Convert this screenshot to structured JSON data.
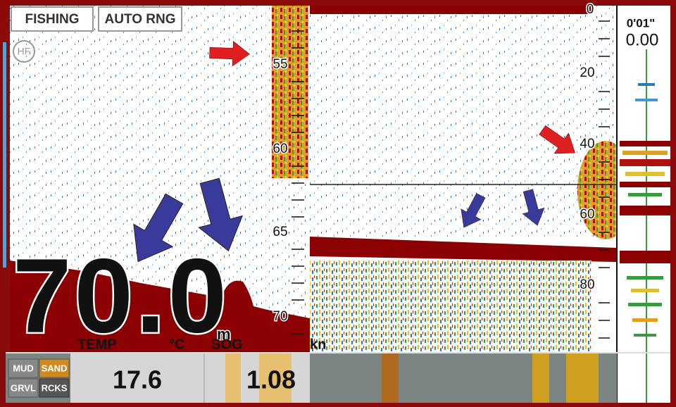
{
  "header": {
    "mode": "FISHING",
    "range": "AUTO RNG",
    "frequency": "HF"
  },
  "left_scale": [
    "55",
    "60",
    "65",
    "70"
  ],
  "right_scale": [
    "0",
    "20",
    "40",
    "60",
    "80"
  ],
  "flasher": {
    "time": "0'01\"",
    "value": "0.00"
  },
  "depth": {
    "value": "70.0",
    "unit": "m"
  },
  "readouts": [
    {
      "label": "TEMP",
      "unit": "°C",
      "value": "17.6"
    },
    {
      "label": "SOG",
      "unit": "kn",
      "value": "1.08"
    }
  ],
  "bottom_types": [
    "MUD",
    "SAND",
    "GRVL",
    "RCKS"
  ]
}
